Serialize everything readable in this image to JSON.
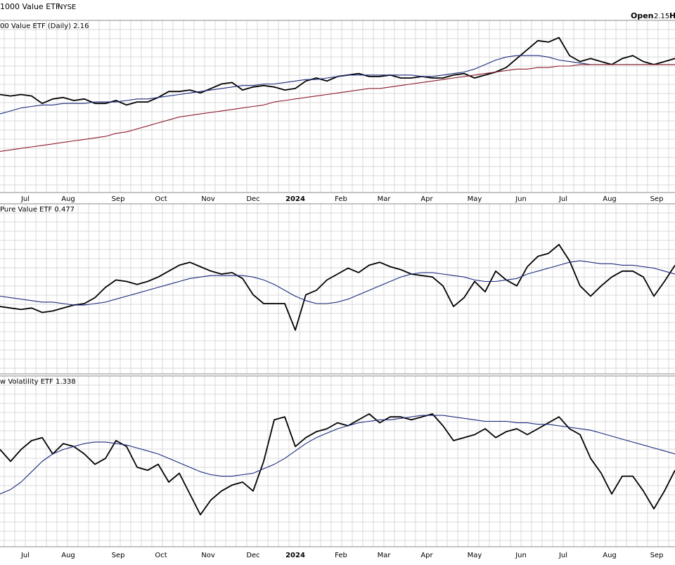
{
  "header": {
    "title": "1000 Value ETF",
    "exchange": "NYSE",
    "open_label": "Open",
    "open_value": "2.15",
    "cut_label": "H"
  },
  "colors": {
    "price": "#000000",
    "ma_blue": "#1a2a7a",
    "ma_red": "#8b1a2a",
    "grid": "#d9d9d9",
    "border": "#888888"
  },
  "x_axis": {
    "months": [
      "Jul",
      "Aug",
      "Sep",
      "Oct",
      "Nov",
      "Dec",
      "2024",
      "Feb",
      "Mar",
      "Apr",
      "May",
      "Jun",
      "Jul",
      "Aug",
      "Sep"
    ],
    "bold": [
      "2024"
    ]
  },
  "chart_data": [
    {
      "type": "line",
      "legend": "00 Value ETF (Daily) 2.16",
      "x": [
        0,
        15,
        30,
        45,
        60,
        75,
        90,
        105,
        120,
        135,
        150,
        165,
        180,
        195,
        210,
        225,
        240,
        255,
        270,
        285,
        300,
        315,
        330,
        345,
        360,
        375,
        390,
        405,
        420,
        435,
        450,
        465,
        480,
        495,
        510,
        525,
        540,
        555,
        570,
        585,
        600,
        615,
        630,
        645,
        660,
        675,
        690,
        705,
        720,
        735,
        750,
        765,
        780,
        795,
        810,
        825,
        840,
        855,
        870,
        885,
        900,
        915,
        930,
        945,
        960
      ],
      "ylim": [
        0,
        100
      ],
      "series": [
        {
          "role": "price",
          "values": [
            58,
            57,
            58,
            57,
            52,
            55,
            56,
            54,
            55,
            52,
            52,
            54,
            51,
            53,
            53,
            56,
            60,
            60,
            61,
            59,
            62,
            65,
            66,
            61,
            63,
            64,
            63,
            61,
            62,
            67,
            69,
            67,
            70,
            71,
            72,
            70,
            70,
            71,
            69,
            69,
            70,
            69,
            69,
            71,
            72,
            69,
            71,
            73,
            76,
            82,
            88,
            94,
            93,
            96,
            84,
            80,
            82,
            80,
            78,
            82,
            84,
            80,
            78,
            80,
            82
          ]
        },
        {
          "role": "ma",
          "values": [
            45,
            47,
            49,
            50,
            51,
            51,
            52,
            52,
            52,
            53,
            53,
            53,
            54,
            55,
            55,
            56,
            57,
            58,
            59,
            60,
            61,
            62,
            63,
            64,
            64,
            65,
            65,
            66,
            67,
            68,
            68,
            69,
            70,
            71,
            71,
            71,
            71,
            71,
            71,
            71,
            70,
            70,
            71,
            72,
            73,
            75,
            78,
            81,
            83,
            84,
            84,
            84,
            83,
            81,
            80,
            79,
            78,
            78,
            78,
            78,
            78,
            78,
            78,
            78,
            78
          ]
        },
        {
          "role": "ma2",
          "values": [
            20,
            21,
            22,
            23,
            24,
            25,
            26,
            27,
            28,
            29,
            30,
            32,
            33,
            35,
            37,
            39,
            41,
            43,
            44,
            45,
            46,
            47,
            48,
            49,
            50,
            51,
            53,
            54,
            55,
            56,
            57,
            58,
            59,
            60,
            61,
            62,
            62,
            63,
            64,
            65,
            66,
            67,
            68,
            69,
            70,
            71,
            72,
            73,
            74,
            75,
            75,
            76,
            76,
            77,
            77,
            78,
            78,
            78,
            78,
            78,
            78,
            78,
            78,
            78,
            78
          ]
        }
      ]
    },
    {
      "type": "line",
      "legend": "Pure Value ETF 0.477",
      "x": [
        0,
        15,
        30,
        45,
        60,
        75,
        90,
        105,
        120,
        135,
        150,
        165,
        180,
        195,
        210,
        225,
        240,
        255,
        270,
        285,
        300,
        315,
        330,
        345,
        360,
        375,
        390,
        405,
        420,
        435,
        450,
        465,
        480,
        495,
        510,
        525,
        540,
        555,
        570,
        585,
        600,
        615,
        630,
        645,
        660,
        675,
        690,
        705,
        720,
        735,
        750,
        765,
        780,
        795,
        810,
        825,
        840,
        855,
        870,
        885,
        900,
        915,
        930,
        945,
        960
      ],
      "ylim": [
        0,
        100
      ],
      "series": [
        {
          "role": "price",
          "values": [
            38,
            37,
            36,
            37,
            34,
            35,
            37,
            39,
            40,
            44,
            51,
            56,
            55,
            53,
            55,
            58,
            62,
            66,
            68,
            65,
            62,
            60,
            61,
            57,
            46,
            40,
            40,
            40,
            22,
            46,
            49,
            56,
            60,
            64,
            61,
            66,
            68,
            65,
            63,
            60,
            59,
            58,
            52,
            38,
            44,
            55,
            48,
            62,
            56,
            52,
            65,
            72,
            74,
            80,
            69,
            52,
            45,
            52,
            58,
            62,
            62,
            58,
            45,
            55,
            66
          ]
        },
        {
          "role": "ma",
          "values": [
            45,
            44,
            43,
            42,
            41,
            41,
            40,
            39,
            39,
            40,
            41,
            43,
            45,
            47,
            49,
            51,
            53,
            55,
            57,
            58,
            59,
            59,
            59,
            59,
            58,
            56,
            53,
            49,
            45,
            42,
            40,
            40,
            41,
            43,
            46,
            49,
            52,
            55,
            58,
            60,
            61,
            61,
            60,
            59,
            58,
            56,
            55,
            55,
            56,
            57,
            60,
            62,
            64,
            66,
            68,
            69,
            68,
            67,
            67,
            66,
            66,
            65,
            64,
            62,
            60
          ]
        }
      ]
    },
    {
      "type": "line",
      "legend": "w Volatility ETF 1.338",
      "x": [
        0,
        15,
        30,
        45,
        60,
        75,
        90,
        105,
        120,
        135,
        150,
        165,
        180,
        195,
        210,
        225,
        240,
        255,
        270,
        285,
        300,
        315,
        330,
        345,
        360,
        375,
        390,
        405,
        420,
        435,
        450,
        465,
        480,
        495,
        510,
        525,
        540,
        555,
        570,
        585,
        600,
        615,
        630,
        645,
        660,
        675,
        690,
        705,
        720,
        735,
        750,
        765,
        780,
        795,
        810,
        825,
        840,
        855,
        870,
        885,
        900,
        915,
        930,
        945,
        960
      ],
      "ylim": [
        0,
        100
      ],
      "series": [
        {
          "role": "price",
          "values": [
            58,
            50,
            58,
            64,
            66,
            55,
            62,
            60,
            55,
            48,
            52,
            64,
            60,
            46,
            44,
            48,
            36,
            42,
            28,
            14,
            24,
            30,
            34,
            36,
            30,
            50,
            78,
            80,
            60,
            66,
            70,
            72,
            76,
            74,
            78,
            82,
            76,
            80,
            80,
            78,
            80,
            82,
            74,
            64,
            66,
            68,
            72,
            66,
            70,
            72,
            68,
            72,
            76,
            80,
            72,
            68,
            52,
            42,
            28,
            40,
            40,
            30,
            18,
            30,
            44
          ]
        },
        {
          "role": "ma",
          "values": [
            28,
            31,
            36,
            43,
            50,
            55,
            58,
            60,
            62,
            63,
            63,
            62,
            61,
            59,
            57,
            55,
            52,
            49,
            46,
            43,
            41,
            40,
            40,
            41,
            42,
            45,
            48,
            52,
            57,
            62,
            66,
            69,
            72,
            74,
            76,
            77,
            78,
            78,
            79,
            80,
            81,
            81,
            81,
            80,
            79,
            78,
            77,
            77,
            77,
            76,
            76,
            75,
            75,
            74,
            73,
            72,
            71,
            69,
            67,
            65,
            63,
            61,
            59,
            57,
            55
          ]
        }
      ]
    }
  ]
}
